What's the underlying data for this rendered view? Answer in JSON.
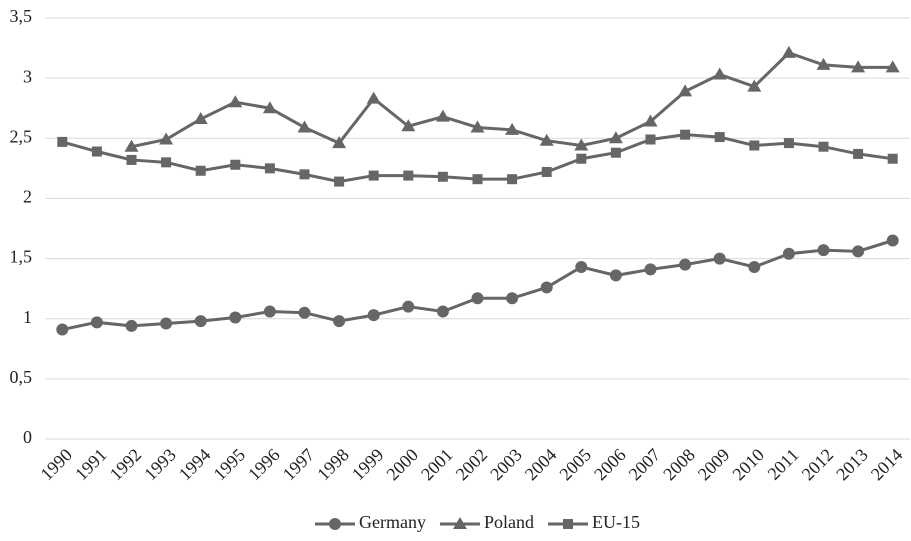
{
  "chart_data": {
    "type": "line",
    "categories": [
      "1990",
      "1991",
      "1992",
      "1993",
      "1994",
      "1995",
      "1996",
      "1997",
      "1998",
      "1999",
      "2000",
      "2001",
      "2002",
      "2003",
      "2004",
      "2005",
      "2006",
      "2007",
      "2008",
      "2009",
      "2010",
      "2011",
      "2012",
      "2013",
      "2014"
    ],
    "series": [
      {
        "name": "Germany",
        "color": "#666666",
        "marker": "circle",
        "values": [
          0.91,
          0.97,
          0.94,
          0.96,
          0.98,
          1.01,
          1.06,
          1.05,
          0.98,
          1.03,
          1.1,
          1.06,
          1.17,
          1.17,
          1.26,
          1.43,
          1.36,
          1.41,
          1.45,
          1.5,
          1.43,
          1.54,
          1.57,
          1.56,
          1.65
        ]
      },
      {
        "name": "Poland",
        "color": "#666666",
        "marker": "triangle",
        "values": [
          null,
          null,
          2.43,
          2.49,
          2.66,
          2.8,
          2.75,
          2.59,
          2.46,
          2.83,
          2.6,
          2.68,
          2.59,
          2.57,
          2.48,
          2.44,
          2.5,
          2.64,
          2.89,
          3.03,
          2.93,
          3.21,
          3.11,
          3.09,
          3.09
        ]
      },
      {
        "name": "EU-15",
        "color": "#666666",
        "marker": "square",
        "values": [
          2.47,
          2.39,
          2.32,
          2.3,
          2.23,
          2.28,
          2.25,
          2.2,
          2.14,
          2.19,
          2.19,
          2.18,
          2.16,
          2.16,
          2.22,
          2.33,
          2.38,
          2.49,
          2.53,
          2.51,
          2.44,
          2.46,
          2.43,
          2.37,
          2.33
        ]
      }
    ],
    "ylim": [
      0,
      3.5
    ],
    "yticks": [
      0,
      {
        "value": 0.5,
        "label": "0,5"
      },
      1,
      {
        "value": 1.5,
        "label": "1,5"
      },
      2,
      {
        "value": 2.5,
        "label": "2,5"
      },
      3,
      {
        "value": 3.5,
        "label": "3,5"
      }
    ],
    "grid": true,
    "legend": "bottom"
  }
}
